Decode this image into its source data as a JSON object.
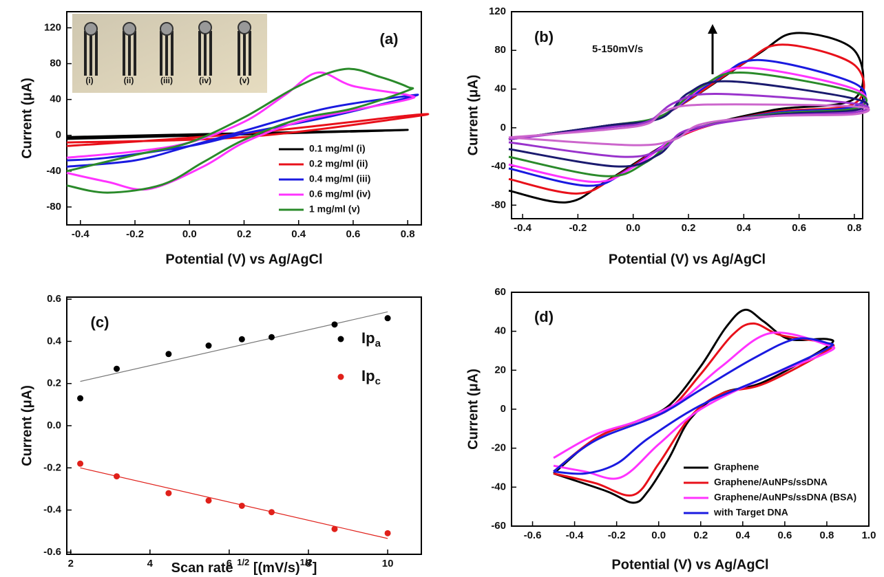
{
  "chart_data": [
    {
      "type": "line",
      "panel_label": "(a)",
      "xlabel": "Potential (V) vs Ag/AgCl",
      "ylabel": "Current (μA)",
      "xlim": [
        -0.45,
        0.85
      ],
      "ylim": [
        -100,
        138
      ],
      "xticks": [
        -0.4,
        -0.2,
        {
          "value": 0,
          "label": "0.0"
        },
        0.2,
        0.4,
        0.6,
        0.8
      ],
      "yticks": [
        -80,
        -40,
        0,
        40,
        80,
        120
      ],
      "legend": "lower right",
      "inset_labels": [
        "(i)",
        "(ii)",
        "(iii)",
        "(iv)",
        "(v)"
      ],
      "series": [
        {
          "name": "0.1 mg/ml (i)",
          "color": "#000000",
          "x": [
            -0.45,
            0.8,
            -0.45
          ],
          "values": [
            -4,
            6,
            -2
          ]
        },
        {
          "name": "0.2 mg/ml (ii)",
          "color": "#e8101a",
          "x": [
            -0.45,
            0.2,
            0.8,
            0.8,
            0.2,
            -0.45
          ],
          "values": [
            -12,
            2,
            22,
            20,
            -2,
            -8
          ]
        },
        {
          "name": "0.4 mg/ml (iii)",
          "color": "#1a1ae0",
          "x": [
            -0.45,
            -0.2,
            0,
            0.2,
            0.5,
            0.8,
            0.8,
            0.5,
            0.2,
            0,
            -0.3,
            -0.45
          ],
          "values": [
            -35,
            -28,
            -12,
            5,
            30,
            44,
            42,
            20,
            2,
            -12,
            -25,
            -28
          ]
        },
        {
          "name": "0.6 mg/ml (iv)",
          "color": "#ff33ff",
          "x": [
            -0.45,
            -0.2,
            0,
            0.2,
            0.35,
            0.47,
            0.6,
            0.8,
            0.8,
            0.6,
            0.4,
            0.2,
            0.05,
            -0.15,
            -0.3,
            -0.45
          ],
          "values": [
            -25,
            -18,
            -8,
            15,
            45,
            70,
            55,
            45,
            40,
            28,
            15,
            -8,
            -35,
            -60,
            -52,
            -42
          ]
        },
        {
          "name": "1 mg/ml (v)",
          "color": "#2a8a2a",
          "x": [
            -0.45,
            -0.2,
            0,
            0.2,
            0.4,
            0.57,
            0.7,
            0.8,
            0.8,
            0.6,
            0.4,
            0.2,
            0.05,
            -0.1,
            -0.3,
            -0.45
          ],
          "values": [
            -40,
            -22,
            -8,
            20,
            55,
            74,
            65,
            54,
            50,
            30,
            18,
            -5,
            -30,
            -55,
            -64,
            -56
          ]
        }
      ]
    },
    {
      "type": "line",
      "panel_label": "(b)",
      "xlabel": "Potential (V) vs Ag/AgCl",
      "ylabel": "Current (μA)",
      "xlim": [
        -0.44,
        0.83
      ],
      "ylim": [
        -94,
        120
      ],
      "xticks": [
        -0.4,
        -0.2,
        {
          "value": 0,
          "label": "0.0"
        },
        0.2,
        0.4,
        0.6,
        0.8
      ],
      "yticks": [
        -80,
        -40,
        0,
        40,
        80,
        120
      ],
      "annotation": "5-150mV/s",
      "series": [
        {
          "color": "#000000",
          "x": [
            -0.45,
            -0.1,
            0.1,
            0.44,
            0.59,
            0.8,
            0.8,
            0.5,
            0.2,
            -0.09,
            -0.24,
            -0.45
          ],
          "values": [
            -12,
            2,
            12,
            74,
            98,
            80,
            30,
            18,
            -5,
            -54,
            -77,
            -65
          ]
        },
        {
          "color": "#e8101a",
          "x": [
            -0.45,
            -0.1,
            0.1,
            0.39,
            0.54,
            0.8,
            0.8,
            0.5,
            0.2,
            -0.05,
            -0.2,
            -0.45
          ],
          "values": [
            -12,
            2,
            12,
            65,
            86,
            65,
            25,
            16,
            -5,
            -48,
            -68,
            -53
          ]
        },
        {
          "color": "#1a1ae0",
          "x": [
            -0.45,
            -0.1,
            0.1,
            0.31,
            0.46,
            0.8,
            0.8,
            0.5,
            0.2,
            -0.01,
            -0.16,
            -0.45
          ],
          "values": [
            -12,
            2,
            12,
            52,
            70,
            46,
            22,
            15,
            -4,
            -42,
            -60,
            -42
          ]
        },
        {
          "color": "#ff33ff",
          "x": [
            -0.45,
            -0.1,
            0.1,
            0.27,
            0.42,
            0.8,
            0.8,
            0.5,
            0.2,
            0.01,
            -0.14,
            -0.45
          ],
          "values": [
            -12,
            2,
            12,
            46,
            62,
            40,
            20,
            14,
            -4,
            -39,
            -56,
            -38
          ]
        },
        {
          "color": "#2a8a2a",
          "x": [
            -0.45,
            -0.1,
            0.1,
            0.25,
            0.4,
            0.8,
            0.8,
            0.5,
            0.2,
            0.05,
            -0.1,
            -0.45
          ],
          "values": [
            -12,
            2,
            12,
            43,
            57,
            37,
            20,
            14,
            -3,
            -35,
            -50,
            -30
          ]
        },
        {
          "color": "#1a1a6e",
          "x": [
            -0.45,
            -0.1,
            0.1,
            0.2,
            0.35,
            0.8,
            0.8,
            0.5,
            0.2,
            0.09,
            -0.06,
            -0.45
          ],
          "values": [
            -12,
            2,
            10,
            36,
            48,
            30,
            18,
            13,
            -3,
            -28,
            -40,
            -22
          ]
        },
        {
          "color": "#9933cc",
          "x": [
            -0.45,
            -0.1,
            0.05,
            0.15,
            0.3,
            0.8,
            0.8,
            0.5,
            0.2,
            0.11,
            -0.04,
            -0.45
          ],
          "values": [
            -12,
            0,
            6,
            26,
            35,
            25,
            16,
            12,
            -2,
            -21,
            -30,
            -15
          ]
        },
        {
          "color": "#cc66cc",
          "x": [
            -0.45,
            -0.1,
            0.05,
            0.12,
            0.27,
            0.8,
            0.8,
            0.5,
            0.25,
            0.15,
            0,
            -0.45
          ],
          "values": [
            -10,
            -2,
            4,
            18,
            24,
            22,
            14,
            12,
            4,
            -12,
            -18,
            -10
          ]
        }
      ]
    },
    {
      "type": "scatter",
      "panel_label": "(c)",
      "xlabel": [
        {
          "text": "Scan rate "
        },
        {
          "text": "1/2",
          "sup": true
        },
        {
          "text": " [(mV/s)"
        },
        {
          "text": "1/2",
          "sup": true
        },
        {
          "text": "]"
        }
      ],
      "ylabel": "Current (μA)",
      "xlim": [
        1.9,
        10.85
      ],
      "ylim": [
        -0.61,
        0.61
      ],
      "xticks": [
        2,
        4,
        6,
        8,
        10
      ],
      "yticks": [
        -0.6,
        -0.4,
        -0.2,
        {
          "value": 0,
          "label": "0.0"
        },
        0.2,
        0.4,
        0.6
      ],
      "legend": "right",
      "series": [
        {
          "name": "Ip",
          "subscript": "a",
          "color": "#000000",
          "x": [
            2.24,
            3.16,
            4.47,
            5.48,
            6.32,
            7.07,
            8.66,
            10
          ],
          "values": [
            0.13,
            0.27,
            0.34,
            0.38,
            0.41,
            0.42,
            0.48,
            0.51
          ],
          "fit": {
            "color": "#777777",
            "x": [
              2.24,
              10
            ],
            "values": [
              0.21,
              0.54
            ]
          }
        },
        {
          "name": "Ip",
          "subscript": "c",
          "color": "#e0201a",
          "x": [
            2.24,
            3.16,
            4.47,
            5.48,
            6.32,
            7.07,
            8.66,
            10
          ],
          "values": [
            -0.18,
            -0.24,
            -0.32,
            -0.355,
            -0.38,
            -0.41,
            -0.49,
            -0.51
          ],
          "fit": {
            "color": "#e0201a",
            "x": [
              2.24,
              10
            ],
            "values": [
              -0.2,
              -0.535
            ]
          }
        }
      ]
    },
    {
      "type": "line",
      "panel_label": "(d)",
      "xlabel": "Potential (V) vs Ag/AgCl",
      "ylabel": "Current (μA)",
      "xlim": [
        -0.7,
        1.0
      ],
      "ylim": [
        -60,
        60
      ],
      "xticks": [
        -0.6,
        -0.4,
        -0.2,
        {
          "value": 0,
          "label": "0.0"
        },
        0.2,
        0.4,
        0.6,
        0.8,
        {
          "value": 1,
          "label": "1.0"
        }
      ],
      "yticks": [
        -60,
        -40,
        -20,
        0,
        20,
        40,
        60
      ],
      "legend": "lower right",
      "series": [
        {
          "name": "Graphene",
          "color": "#000000",
          "x": [
            -0.5,
            -0.3,
            -0.1,
            0.05,
            0.2,
            0.32,
            0.41,
            0.5,
            0.62,
            0.8,
            0.8,
            0.5,
            0.3,
            0.15,
            0.05,
            -0.05,
            -0.12,
            -0.25,
            -0.5
          ],
          "values": [
            -33,
            -15,
            -6,
            2,
            22,
            42,
            51,
            45,
            36,
            36,
            32,
            14,
            8,
            -5,
            -25,
            -42,
            -48,
            -42,
            -33
          ]
        },
        {
          "name": "Graphene/AuNPs/ssDNA",
          "color": "#e8101a",
          "x": [
            -0.5,
            -0.3,
            -0.1,
            0.05,
            0.2,
            0.35,
            0.45,
            0.58,
            0.8,
            0.8,
            0.5,
            0.3,
            0.15,
            0,
            -0.12,
            -0.3,
            -0.5
          ],
          "values": [
            -32,
            -15,
            -6,
            0,
            18,
            38,
            44,
            38,
            34,
            30,
            13,
            8,
            -4,
            -28,
            -44,
            -38,
            -33
          ]
        },
        {
          "name": "Graphene/AuNPs/ssDNA (BSA)",
          "color": "#ff33ff",
          "x": [
            -0.5,
            -0.3,
            -0.1,
            0.1,
            0.3,
            0.53,
            0.8,
            0.8,
            0.5,
            0.2,
            0,
            -0.18,
            -0.35,
            -0.5
          ],
          "values": [
            -25,
            -13,
            -6,
            4,
            22,
            39,
            33,
            29,
            16,
            0,
            -18,
            -35,
            -32,
            -29
          ]
        },
        {
          "name": "with Target DNA",
          "color": "#1a1ae0",
          "x": [
            -0.5,
            -0.3,
            0,
            0.2,
            0.45,
            0.65,
            0.8,
            0.8,
            0.5,
            0.2,
            -0.05,
            -0.2,
            -0.35,
            -0.5
          ],
          "values": [
            -32,
            -16,
            -3,
            10,
            26,
            36,
            34,
            31,
            16,
            2,
            -15,
            -28,
            -33,
            -32
          ]
        }
      ]
    }
  ]
}
